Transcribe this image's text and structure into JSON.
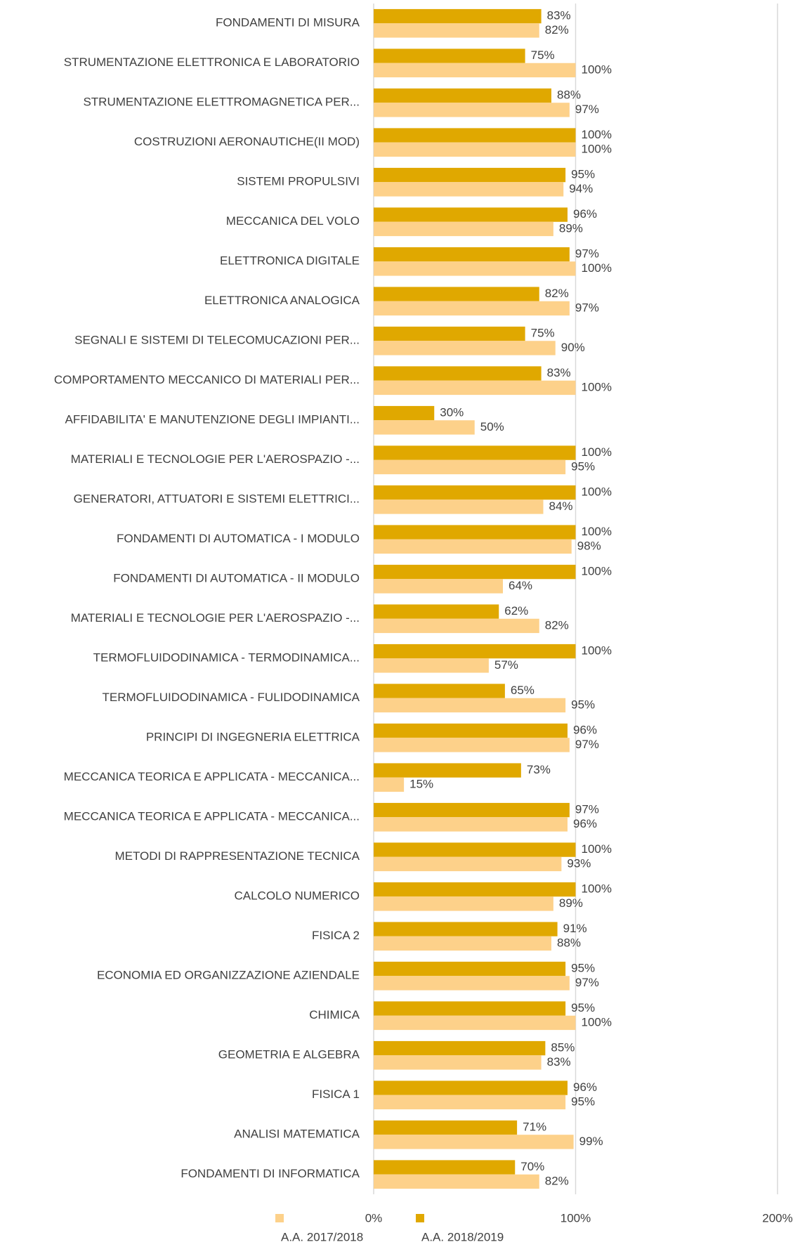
{
  "chart_data": {
    "type": "hbar",
    "categories": [
      "FONDAMENTI DI MISURA",
      "STRUMENTAZIONE ELETTRONICA E LABORATORIO",
      "STRUMENTAZIONE ELETTROMAGNETICA PER...",
      "COSTRUZIONI AERONAUTICHE(II MOD)",
      "SISTEMI PROPULSIVI",
      "MECCANICA DEL VOLO",
      "ELETTRONICA DIGITALE",
      "ELETTRONICA ANALOGICA",
      "SEGNALI E SISTEMI DI TELECOMUCAZIONI PER...",
      "COMPORTAMENTO MECCANICO DI MATERIALI PER...",
      "AFFIDABILITA' E MANUTENZIONE DEGLI IMPIANTI...",
      "MATERIALI E TECNOLOGIE PER L'AEROSPAZIO -...",
      "GENERATORI, ATTUATORI E SISTEMI ELETTRICI...",
      "FONDAMENTI DI AUTOMATICA - I MODULO",
      "FONDAMENTI DI AUTOMATICA - II MODULO",
      "MATERIALI E TECNOLOGIE PER L'AEROSPAZIO -...",
      "TERMOFLUIDODINAMICA - TERMODINAMICA...",
      "TERMOFLUIDODINAMICA - FULIDODINAMICA",
      "PRINCIPI DI INGEGNERIA ELETTRICA",
      "MECCANICA TEORICA E APPLICATA - MECCANICA...",
      "MECCANICA TEORICA E APPLICATA - MECCANICA...",
      "METODI DI RAPPRESENTAZIONE TECNICA",
      "CALCOLO NUMERICO",
      "FISICA 2",
      "ECONOMIA ED ORGANIZZAZIONE AZIENDALE",
      "CHIMICA",
      "GEOMETRIA E ALGEBRA",
      "FISICA 1",
      "ANALISI MATEMATICA",
      "FONDAMENTI DI INFORMATICA"
    ],
    "series": [
      {
        "name": "A.A. 2017/2018",
        "color": "#fdd18a",
        "values": [
          82,
          100,
          97,
          100,
          94,
          89,
          100,
          97,
          90,
          100,
          50,
          95,
          84,
          98,
          64,
          82,
          57,
          95,
          97,
          15,
          96,
          93,
          89,
          88,
          97,
          100,
          83,
          95,
          99,
          82
        ],
        "value_labels": [
          "82%",
          "100%",
          "97%",
          "100%",
          "94%",
          "89%",
          "100%",
          "97%",
          "90%",
          "100%",
          "50%",
          "95%",
          "84%",
          "98%",
          "64%",
          "82%",
          "57%",
          "95%",
          "97%",
          "15%",
          "96%",
          "93%",
          "89%",
          "88%",
          "97%",
          "100%",
          "83%",
          "95%",
          "99%",
          "82%"
        ]
      },
      {
        "name": "A.A. 2018/2019",
        "color": "#e0a800",
        "values": [
          83,
          75,
          88,
          100,
          95,
          96,
          97,
          82,
          75,
          83,
          30,
          100,
          100,
          100,
          100,
          62,
          100,
          65,
          96,
          73,
          97,
          100,
          100,
          91,
          95,
          95,
          85,
          96,
          71,
          70
        ],
        "value_labels": [
          "83%",
          "75%",
          "88%",
          "100%",
          "95%",
          "96%",
          "97%",
          "82%",
          "75%",
          "83%",
          "30%",
          "100%",
          "100%",
          "100%",
          "100%",
          "62%",
          "100%",
          "65%",
          "96%",
          "73%",
          "97%",
          "100%",
          "100%",
          "91%",
          "95%",
          "95%",
          "85%",
          "96%",
          "71%",
          "70%"
        ]
      }
    ],
    "xlim": [
      0,
      200
    ],
    "xticks": [
      {
        "value": 0,
        "label": "0%"
      },
      {
        "value": 100,
        "label": "100%"
      },
      {
        "value": 200,
        "label": "200%"
      }
    ],
    "grid": true,
    "legend": "bottom"
  }
}
